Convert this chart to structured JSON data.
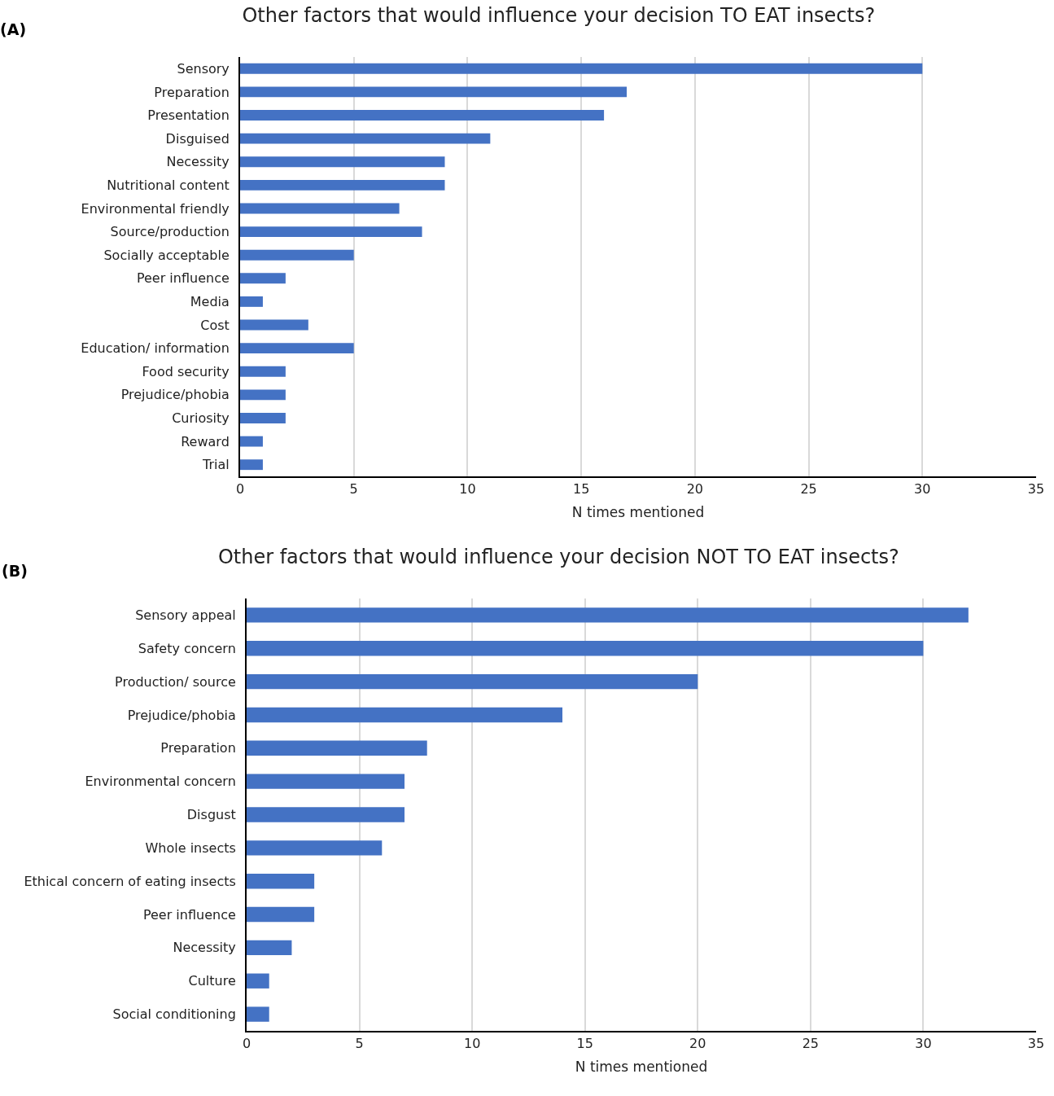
{
  "chart_data": [
    {
      "type": "bar",
      "orientation": "horizontal",
      "title": "Other factors that would influence your decision TO EAT insects?",
      "xlabel": "N times mentioned",
      "annotations": [
        "(A)"
      ],
      "categories": [
        "Sensory",
        "Preparation",
        "Presentation",
        "Disguised",
        "Necessity",
        "Nutritional content",
        "Environmental friendly",
        "Source/production",
        "Socially acceptable",
        "Peer influence",
        "Media",
        "Cost",
        "Education/ information",
        "Food security",
        "Prejudice/phobia",
        "Curiosity",
        "Reward",
        "Trial"
      ],
      "values": [
        30,
        17,
        16,
        11,
        9,
        9,
        7,
        8,
        5,
        2,
        1,
        3,
        5,
        2,
        2,
        2,
        1,
        1
      ],
      "color": "#4472c4",
      "xlim": [
        0,
        35
      ],
      "xticks": [
        0,
        5,
        10,
        15,
        20,
        25,
        30,
        35
      ],
      "grid": "x"
    },
    {
      "type": "bar",
      "orientation": "horizontal",
      "title": "Other factors that would influence your decision NOT TO EAT insects?",
      "xlabel": "N times mentioned",
      "annotations": [
        "(B)"
      ],
      "categories": [
        "Sensory appeal",
        "Safety concern",
        "Production/ source",
        "Prejudice/phobia",
        "Preparation",
        "Environmental concern",
        "Disgust",
        "Whole insects",
        "Ethical concern of eating insects",
        "Peer influence",
        "Necessity",
        "Culture",
        "Social conditioning"
      ],
      "values": [
        32,
        30,
        20,
        14,
        8,
        7,
        7,
        6,
        3,
        3,
        2,
        1,
        1
      ],
      "color": "#4472c4",
      "xlim": [
        0,
        35
      ],
      "xticks": [
        0,
        5,
        10,
        15,
        20,
        25,
        30,
        35
      ],
      "grid": "x"
    }
  ]
}
